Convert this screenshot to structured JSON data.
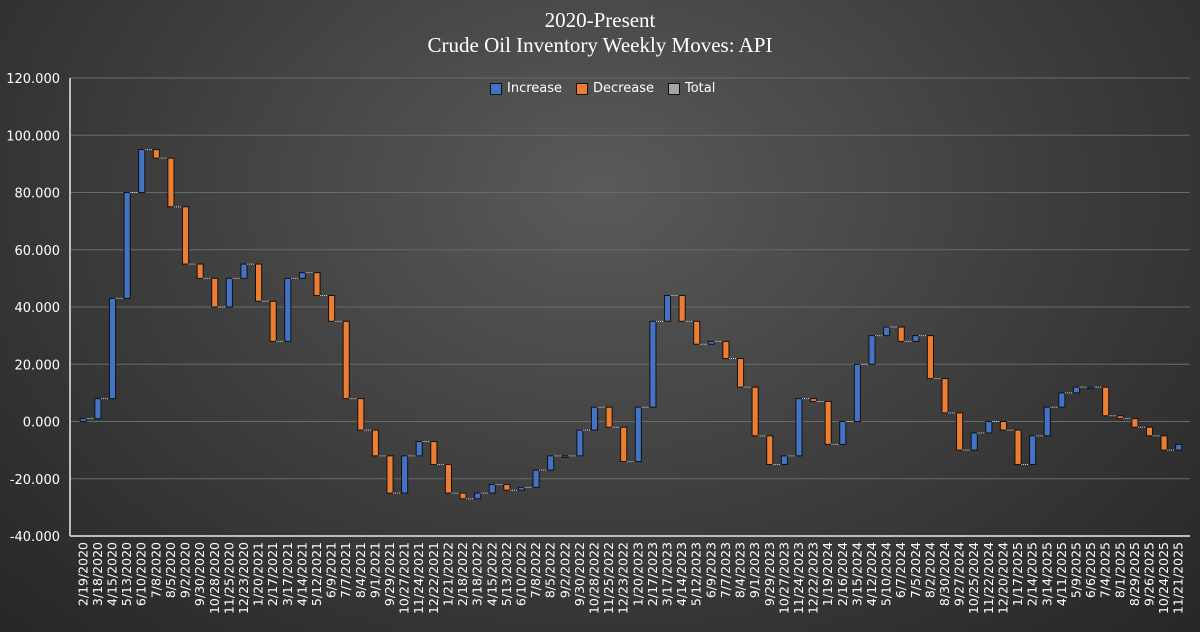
{
  "chart_data": {
    "type": "waterfall",
    "title": "2020-Present",
    "subtitle": "Crude Oil Inventory Weekly Moves:  API",
    "xlabel": "",
    "ylabel": "",
    "ylim": [
      -40,
      120
    ],
    "yticks": [
      -40,
      -20,
      0,
      20,
      40,
      60,
      80,
      100,
      120
    ],
    "ytick_labels": [
      "-40.000",
      "-20.000",
      "0.000",
      "20.000",
      "40.000",
      "60.000",
      "80.000",
      "100.000",
      "120.000"
    ],
    "grid": true,
    "legend_position": "top-center",
    "legend": [
      {
        "label": "Increase",
        "color": "#4472c4"
      },
      {
        "label": "Decrease",
        "color": "#ed7d31"
      },
      {
        "label": "Total",
        "color": "#a5a5a5"
      }
    ],
    "categories": [
      "2/19/2020",
      "3/18/2020",
      "4/15/2020",
      "5/13/2020",
      "6/10/2020",
      "7/8/2020",
      "8/5/2020",
      "9/2/2020",
      "9/30/2020",
      "10/28/2020",
      "11/25/2020",
      "12/23/2020",
      "1/20/2021",
      "2/17/2021",
      "3/17/2021",
      "4/14/2021",
      "5/12/2021",
      "6/9/2021",
      "7/7/2021",
      "8/4/2021",
      "9/1/2021",
      "9/29/2021",
      "10/27/2021",
      "11/24/2021",
      "12/22/2021",
      "1/21/2022",
      "2/18/2022",
      "3/18/2022",
      "4/15/2022",
      "5/13/2022",
      "6/10/2022",
      "7/8/2022",
      "8/5/2022",
      "9/2/2022",
      "9/30/2022",
      "10/28/2022",
      "11/25/2022",
      "12/23/2022",
      "1/20/2023",
      "2/17/2023",
      "3/17/2023",
      "4/14/2023",
      "5/12/2023",
      "6/9/2023",
      "7/7/2023",
      "8/4/2023",
      "9/1/2023",
      "9/29/2023",
      "10/27/2023",
      "11/24/2023",
      "12/22/2023",
      "1/19/2024",
      "2/16/2024",
      "3/15/2024",
      "4/12/2024",
      "5/10/2024",
      "6/7/2024",
      "7/5/2024",
      "8/2/2024",
      "8/30/2024",
      "9/27/2024",
      "10/25/2024",
      "11/22/2024",
      "12/20/2024",
      "1/17/2025",
      "2/14/2025",
      "3/14/2025",
      "4/11/2025",
      "5/9/2025",
      "6/6/2025",
      "7/4/2025",
      "8/1/2025",
      "8/29/2025",
      "9/26/2025",
      "10/24/2025",
      "11/21/2025"
    ],
    "cumulative_level": [
      1,
      8,
      43,
      80,
      95,
      92,
      75,
      55,
      50,
      40,
      50,
      55,
      42,
      28,
      50,
      52,
      44,
      35,
      8,
      -3,
      -12,
      -25,
      -12,
      -7,
      -15,
      -25,
      -27,
      -25,
      -22,
      -24,
      -23,
      -17,
      -12,
      -12,
      -3,
      5,
      -2,
      -14,
      5,
      35,
      44,
      35,
      27,
      28,
      22,
      12,
      -5,
      -15,
      -12,
      8,
      7,
      -8,
      0,
      20,
      30,
      33,
      28,
      30,
      15,
      3,
      -10,
      -4,
      0,
      -3,
      -15,
      -5,
      5,
      10,
      12,
      12,
      2,
      1,
      -2,
      -5,
      -10,
      -8
    ]
  }
}
